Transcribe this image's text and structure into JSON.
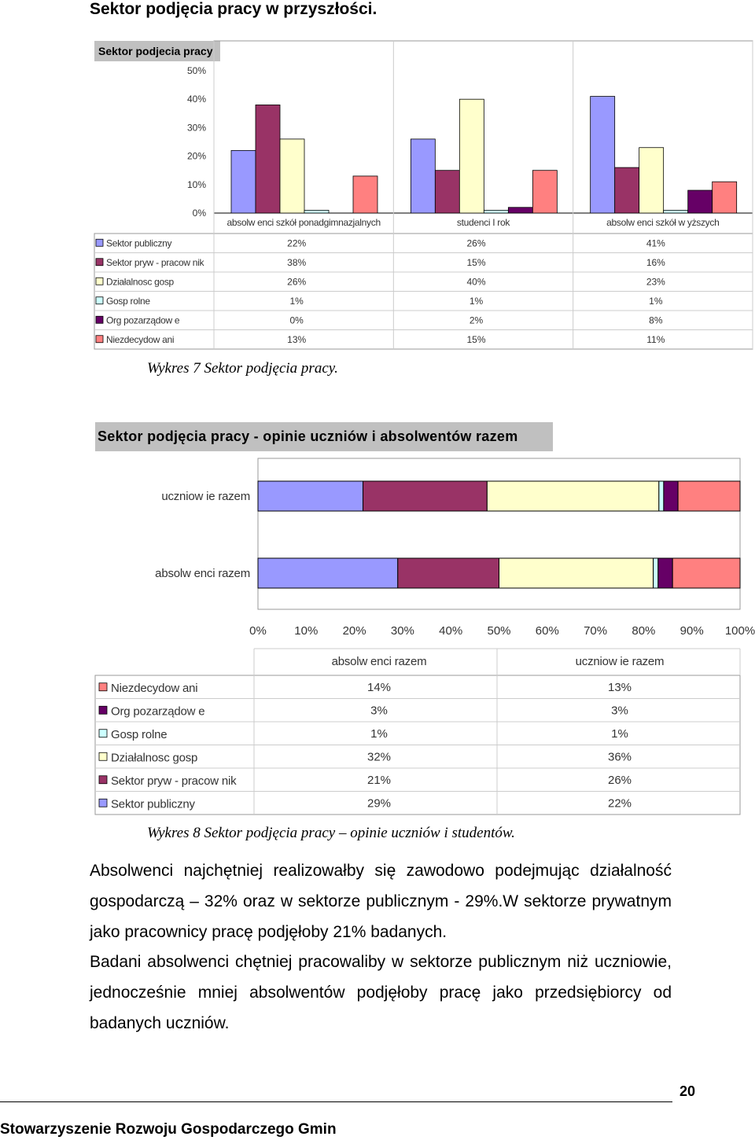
{
  "heading": "Sektor podjęcia pracy w przyszłości.",
  "chart1": {
    "caption": "Wykres 7 Sektor podjęcia pracy.",
    "chart_data": {
      "type": "bar",
      "title": "Sektor podjecia pracy",
      "categories": [
        "absolw enci szkół ponadgimnazjalnych",
        "studenci I rok",
        "absolw enci szkół w yższych"
      ],
      "ylim": [
        0,
        50
      ],
      "yticks": [
        "0%",
        "10%",
        "20%",
        "30%",
        "40%",
        "50%"
      ],
      "grid": false,
      "legend": "table-below",
      "series": [
        {
          "name": "Sektor publiczny",
          "color": "#9999ff",
          "values": [
            22,
            26,
            41
          ],
          "labels": [
            "22%",
            "26%",
            "41%"
          ]
        },
        {
          "name": "Sektor pryw - pracow nik",
          "color": "#993366",
          "values": [
            38,
            15,
            16
          ],
          "labels": [
            "38%",
            "15%",
            "16%"
          ]
        },
        {
          "name": "Działalnosc gosp",
          "color": "#ffffcc",
          "values": [
            26,
            40,
            23
          ],
          "labels": [
            "26%",
            "40%",
            "23%"
          ]
        },
        {
          "name": "Gosp rolne",
          "color": "#ccffff",
          "values": [
            1,
            1,
            1
          ],
          "labels": [
            "1%",
            "1%",
            "1%"
          ]
        },
        {
          "name": "Org pozarządow e",
          "color": "#660066",
          "values": [
            0,
            2,
            8
          ],
          "labels": [
            "0%",
            "2%",
            "8%"
          ]
        },
        {
          "name": "Niezdecydow ani",
          "color": "#ff8080",
          "values": [
            13,
            15,
            11
          ],
          "labels": [
            "13%",
            "15%",
            "11%"
          ]
        }
      ]
    }
  },
  "chart2": {
    "caption": "Wykres 8 Sektor podjęcia pracy – opinie uczniów i studentów.",
    "chart_data": {
      "type": "bar",
      "orientation": "horizontal-stacked-100",
      "title": "Sektor podjęcia pracy - opinie uczniów i absolwentów razem",
      "categories": [
        "uczniow ie razem",
        "absolw enci razem"
      ],
      "xticks": [
        "0%",
        "10%",
        "20%",
        "30%",
        "40%",
        "50%",
        "60%",
        "70%",
        "80%",
        "90%",
        "100%"
      ],
      "xlim": [
        0,
        100
      ],
      "legend": "table-below",
      "table_columns": [
        "absolw enci razem",
        "uczniow ie razem"
      ],
      "series": [
        {
          "name": "Sektor publiczny",
          "color": "#9999ff",
          "values": [
            22,
            29
          ],
          "labels": [
            "22%",
            "29%"
          ]
        },
        {
          "name": "Sektor pryw - pracow nik",
          "color": "#993366",
          "values": [
            26,
            21
          ],
          "labels": [
            "26%",
            "21%"
          ]
        },
        {
          "name": "Działalnosc gosp",
          "color": "#ffffcc",
          "values": [
            36,
            32
          ],
          "labels": [
            "36%",
            "32%"
          ]
        },
        {
          "name": "Gosp rolne",
          "color": "#ccffff",
          "values": [
            1,
            1
          ],
          "labels": [
            "1%",
            "1%"
          ]
        },
        {
          "name": "Org pozarządow e",
          "color": "#660066",
          "values": [
            3,
            3
          ],
          "labels": [
            "3%",
            "3%"
          ]
        },
        {
          "name": "Niezdecydow ani",
          "color": "#ff8080",
          "values": [
            13,
            14
          ],
          "labels": [
            "13%",
            "14%"
          ]
        }
      ]
    }
  },
  "paragraphs": [
    "Absolwenci najchętniej realizowałby się zawodowo podejmując działalność gospodarczą – 32% oraz w sektorze publicznym - 29%.W sektorze prywatnym jako pracownicy pracę podjęłoby 21% badanych.",
    "Badani absolwenci chętniej pracowaliby w sektorze publicznym niż uczniowie, jednocześnie mniej absolwentów podjęłoby pracę jako przedsiębiorcy od badanych uczniów."
  ],
  "page_number": "20",
  "footer": "Stowarzyszenie Rozwoju Gospodarczego Gmin"
}
